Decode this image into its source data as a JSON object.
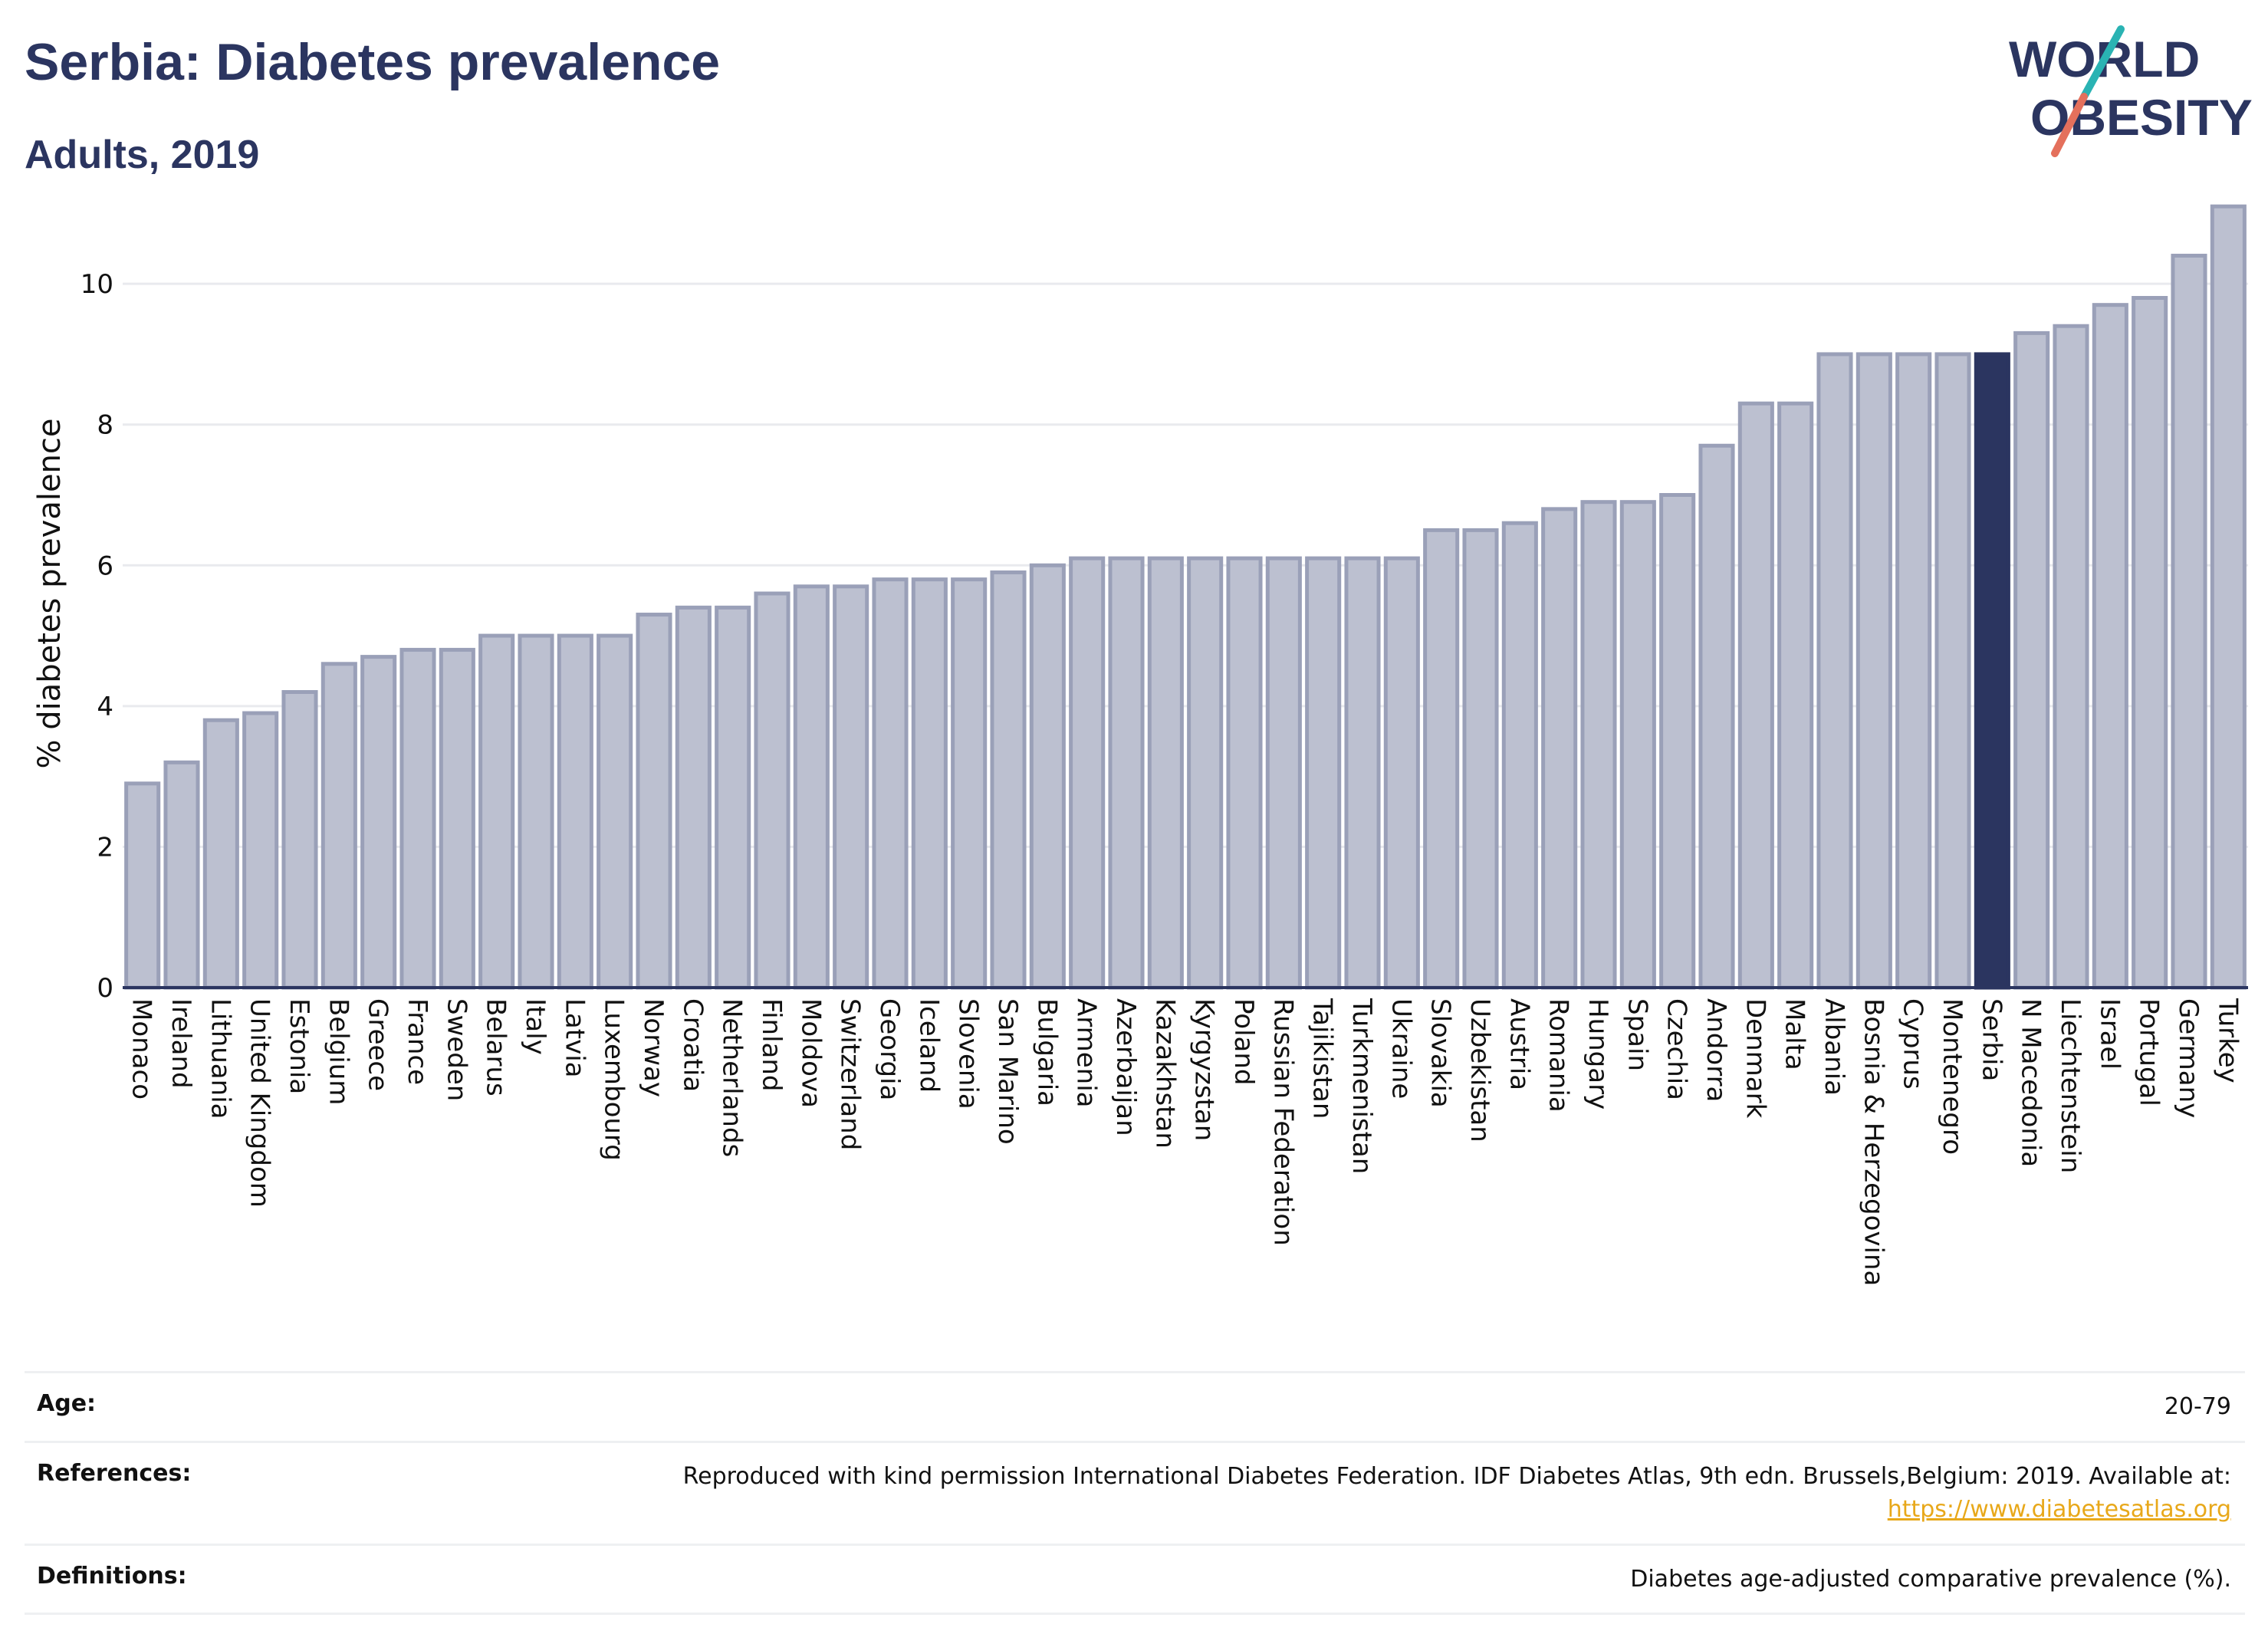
{
  "title": "Serbia: Diabetes prevalence",
  "subtitle": "Adults, 2019",
  "logo": {
    "line1": "WORLD",
    "line2": "OBESITY",
    "colors": {
      "text": "#2b3560",
      "slash_top": "#2ab3b3",
      "slash_bottom": "#e4705c"
    }
  },
  "colors": {
    "bar": "#bcc0d0",
    "bar_stroke": "#9aa0b8",
    "highlight": "#2b3560",
    "grid": "#e9eaee",
    "axis": "#2b3560"
  },
  "chart_data": {
    "type": "bar",
    "ylabel": "% diabetes prevalence",
    "xlabel": "",
    "ylim": [
      0,
      11.2
    ],
    "yticks": [
      0,
      2,
      4,
      6,
      8,
      10
    ],
    "grid": true,
    "highlight": "Serbia",
    "categories": [
      "Monaco",
      "Ireland",
      "Lithuania",
      "United Kingdom",
      "Estonia",
      "Belgium",
      "Greece",
      "France",
      "Sweden",
      "Belarus",
      "Italy",
      "Latvia",
      "Luxembourg",
      "Norway",
      "Croatia",
      "Netherlands",
      "Finland",
      "Moldova",
      "Switzerland",
      "Georgia",
      "Iceland",
      "Slovenia",
      "San Marino",
      "Bulgaria",
      "Armenia",
      "Azerbaijan",
      "Kazakhstan",
      "Kyrgyzstan",
      "Poland",
      "Russian Federation",
      "Tajikistan",
      "Turkmenistan",
      "Ukraine",
      "Slovakia",
      "Uzbekistan",
      "Austria",
      "Romania",
      "Hungary",
      "Spain",
      "Czechia",
      "Andorra",
      "Denmark",
      "Malta",
      "Albania",
      "Bosnia & Herzegovina",
      "Cyprus",
      "Montenegro",
      "Serbia",
      "N Macedonia",
      "Liechtenstein",
      "Israel",
      "Portugal",
      "Germany",
      "Turkey"
    ],
    "values": [
      2.9,
      3.2,
      3.8,
      3.9,
      4.2,
      4.6,
      4.7,
      4.8,
      4.8,
      5.0,
      5.0,
      5.0,
      5.0,
      5.3,
      5.4,
      5.4,
      5.6,
      5.7,
      5.7,
      5.8,
      5.8,
      5.8,
      5.9,
      6.0,
      6.1,
      6.1,
      6.1,
      6.1,
      6.1,
      6.1,
      6.1,
      6.1,
      6.1,
      6.5,
      6.5,
      6.6,
      6.8,
      6.9,
      6.9,
      7.0,
      7.7,
      8.3,
      8.3,
      9.0,
      9.0,
      9.0,
      9.0,
      9.0,
      9.3,
      9.4,
      9.7,
      9.8,
      10.4,
      11.1
    ]
  },
  "footer": {
    "age_label": "Age:",
    "age_value": "20-79",
    "references_label": "References:",
    "references_text": "Reproduced with kind permission International Diabetes Federation. IDF Diabetes Atlas, 9th edn. Brussels,Belgium: 2019. Available at:",
    "references_link": "https://www.diabetesatlas.org",
    "definitions_label": "Definitions:",
    "definitions_value": "Diabetes age-adjusted comparative prevalence (%)."
  }
}
